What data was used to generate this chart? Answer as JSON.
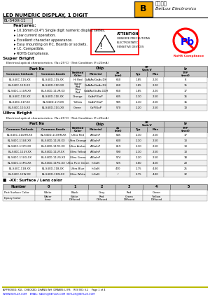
{
  "title": "LED NUMERIC DISPLAY, 1 DIGIT",
  "part_number": "BL-S40X-11",
  "company_chinese": "百池光电",
  "company_english": "BetLux Electronics",
  "features": [
    "10.16mm (0.4\") Single digit numeric display series.",
    "Low current operation.",
    "Excellent character appearance.",
    "Easy mounting on P.C. Boards or sockets.",
    "I.C. Compatible.",
    "ROHS Compliance."
  ],
  "sb_rows": [
    [
      "BL-S40C-11S-XX",
      "BL-S40D-11S-XX",
      "Hi Red",
      "GaAlAs/GaAs.DH",
      "660",
      "1.85",
      "2.20",
      "8"
    ],
    [
      "BL-S40C-11D-XX",
      "BL-S40D-11D-XX",
      "Super\nRed",
      "GaAlAs/GaAs.DH",
      "660",
      "1.85",
      "2.20",
      "15"
    ],
    [
      "BL-S40C-11UR-XX",
      "BL-S40D-11UR-XX",
      "Ultra\nRed",
      "GaAlAs/GaAs.DDH",
      "660",
      "1.85",
      "2.20",
      "17"
    ],
    [
      "BL-S40C-11E-XX",
      "BL-S40D-11E-XX",
      "Orange",
      "GaAsP/GaP",
      "635",
      "2.10",
      "2.50",
      "16"
    ],
    [
      "BL-S40C-11Y-XX",
      "BL-S40D-11Y-XX",
      "Yellow",
      "GaAsP/GaP",
      "585",
      "2.10",
      "2.50",
      "16"
    ],
    [
      "BL-S40C-11G-XX",
      "BL-S40D-11G-XX",
      "Green",
      "GaP/GaP",
      "570",
      "2.20",
      "2.50",
      "10"
    ]
  ],
  "ub_rows": [
    [
      "BL-S40C-11UHR-XX",
      "BL-S40D-11UHR-XX",
      "Ultra Red",
      "AlGaInP",
      "645",
      "2.10",
      "2.50",
      "17"
    ],
    [
      "BL-S40C-11UE-XX",
      "BL-S40D-11UE-XX",
      "Ultra Orange",
      "AlGaInP",
      "630",
      "2.10",
      "2.50",
      "13"
    ],
    [
      "BL-S40C-11YO-XX",
      "BL-S40D-11YO-XX",
      "Ultra Amber",
      "AlGaInP",
      "619",
      "2.10",
      "2.50",
      "13"
    ],
    [
      "BL-S40C-11UY-XX",
      "BL-S40D-11UY-XX",
      "Ultra Yellow",
      "AlGaInP",
      "590",
      "2.10",
      "2.50",
      "13"
    ],
    [
      "BL-S40C-11UG-XX",
      "BL-S40D-11UG-XX",
      "Ultra Green",
      "AlGaInP",
      "574",
      "2.20",
      "2.50",
      "18"
    ],
    [
      "BL-S40C-11PG-XX",
      "BL-S40D-11PG-XX",
      "Ultra Pure Green",
      "InGaN",
      "525",
      "3.60",
      "4.50",
      "20"
    ],
    [
      "BL-S40C-11B-XX",
      "BL-S40D-11B-XX",
      "Ultra Blue",
      "InGaN",
      "470",
      "2.75",
      "4.00",
      "25"
    ],
    [
      "BL-S40C-11W-XX",
      "BL-S40D-11W-XX",
      "Ultra White",
      "InGaN",
      "/",
      "2.75",
      "4.00",
      "32"
    ]
  ],
  "surface_rows": [
    [
      "Part Surface Color",
      "White",
      "Black",
      "Gray",
      "Red",
      "Green",
      ""
    ],
    [
      "Epoxy Color",
      "Water\nclear",
      "White\nDiffused",
      "Red\nDiffused",
      "Green\nDiffused",
      "Yellow\nDiffused",
      ""
    ]
  ],
  "footer": "APPROVED: XUL  CHECKED: ZHANG WH  DRAWN: LI FB    REV NO: V.2    Page 1 of 4",
  "footer_url": "WWW.BETLUX.COM    EMAIL: SALES@BETLUX.COM  BETLUX@BETLUX.COM"
}
